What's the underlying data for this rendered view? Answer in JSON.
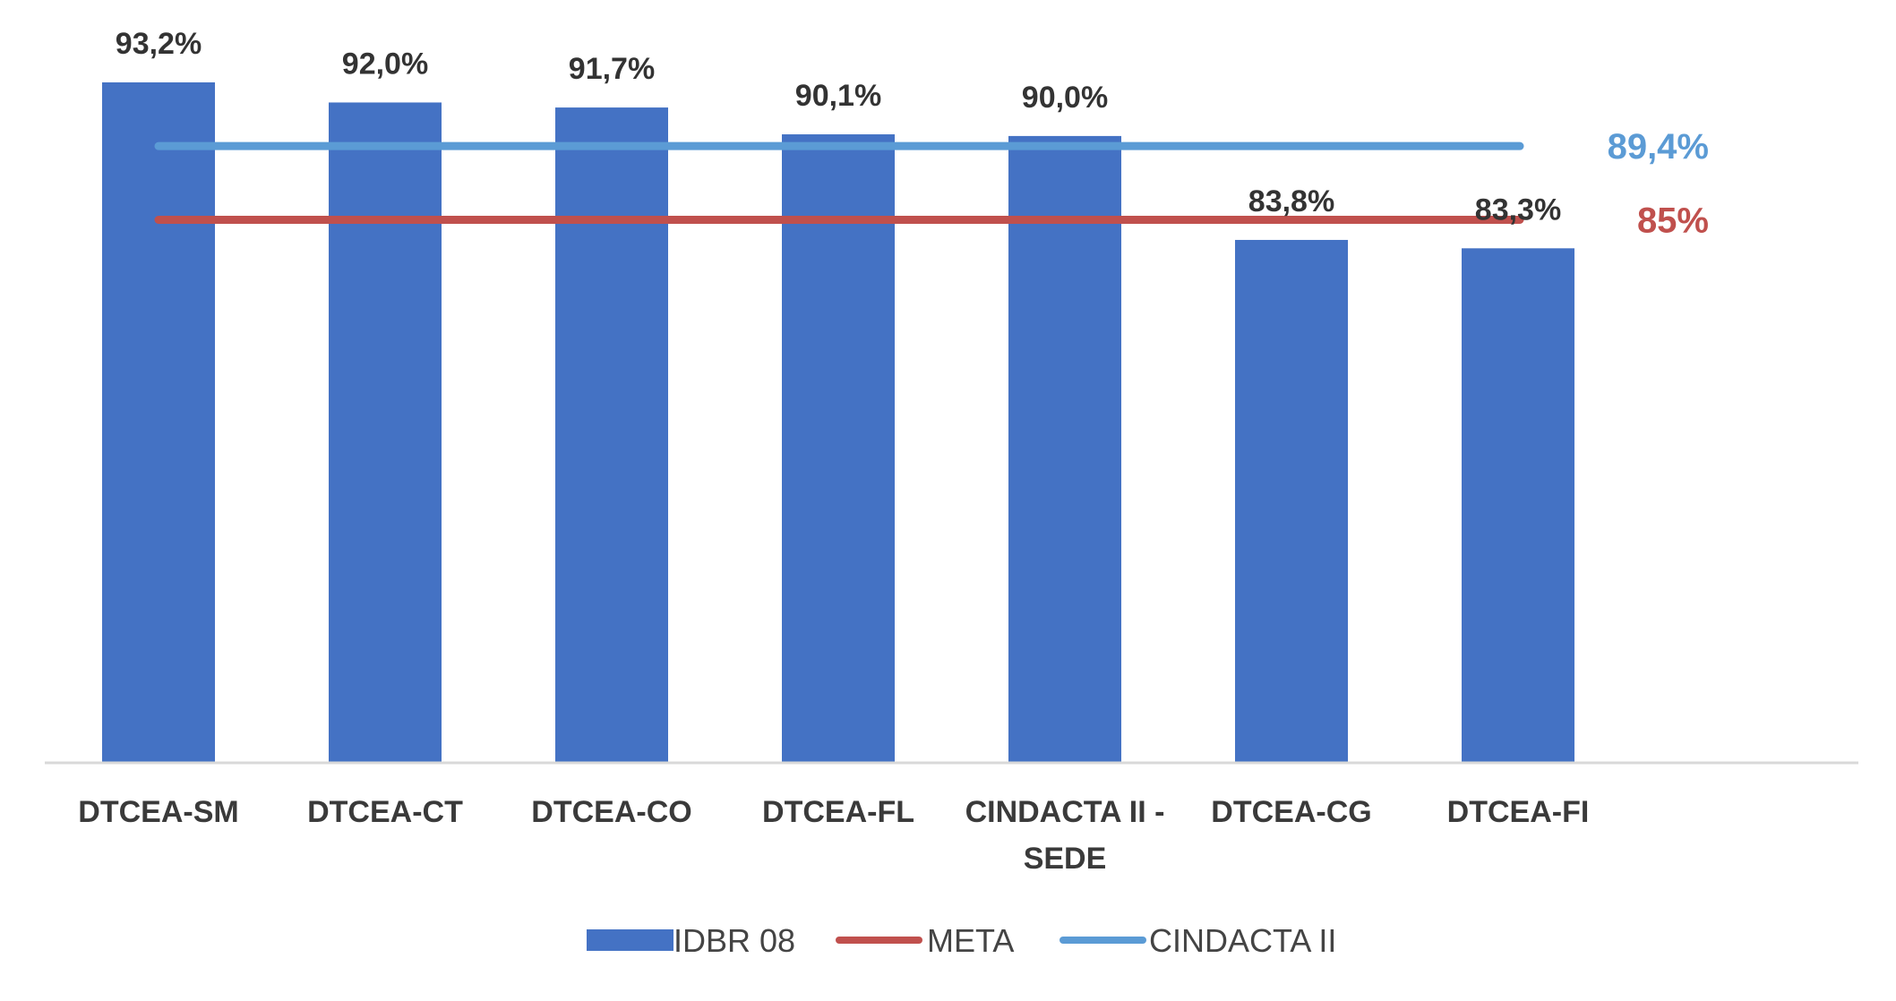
{
  "chart_data": {
    "type": "bar",
    "categories": [
      "DTCEA-SM",
      "DTCEA-CT",
      "DTCEA-CO",
      "DTCEA-FL",
      "CINDACTA II - SEDE",
      "DTCEA-CG",
      "DTCEA-FI"
    ],
    "category_lines": [
      [
        "DTCEA-SM"
      ],
      [
        "DTCEA-CT"
      ],
      [
        "DTCEA-CO"
      ],
      [
        "DTCEA-FL"
      ],
      [
        "CINDACTA II -",
        "SEDE"
      ],
      [
        "DTCEA-CG"
      ],
      [
        "DTCEA-FI"
      ]
    ],
    "series": [
      {
        "name": "IDBR 08",
        "values": [
          93.2,
          92.0,
          91.7,
          90.1,
          90.0,
          83.8,
          83.3
        ],
        "labels": [
          "93,2%",
          "92,0%",
          "91,7%",
          "90,1%",
          "90,0%",
          "83,8%",
          "83,3%"
        ],
        "color": "#4472C4"
      }
    ],
    "reference_lines": [
      {
        "name": "META",
        "value": 85.0,
        "label": "85%",
        "color": "#C0504D"
      },
      {
        "name": "CINDACTA II",
        "value": 89.4,
        "label": "89,4%",
        "color": "#5B9BD5"
      }
    ],
    "legend": {
      "position": "bottom",
      "items": [
        {
          "name": "IDBR 08",
          "kind": "bar",
          "color": "#4472C4"
        },
        {
          "name": "META",
          "kind": "line",
          "color": "#C0504D"
        },
        {
          "name": "CINDACTA II",
          "kind": "line",
          "color": "#5B9BD5"
        }
      ]
    },
    "title": "",
    "xlabel": "",
    "ylabel": "",
    "grid": false,
    "axis_color": "#D9D9D9",
    "label_color": "#333333"
  }
}
